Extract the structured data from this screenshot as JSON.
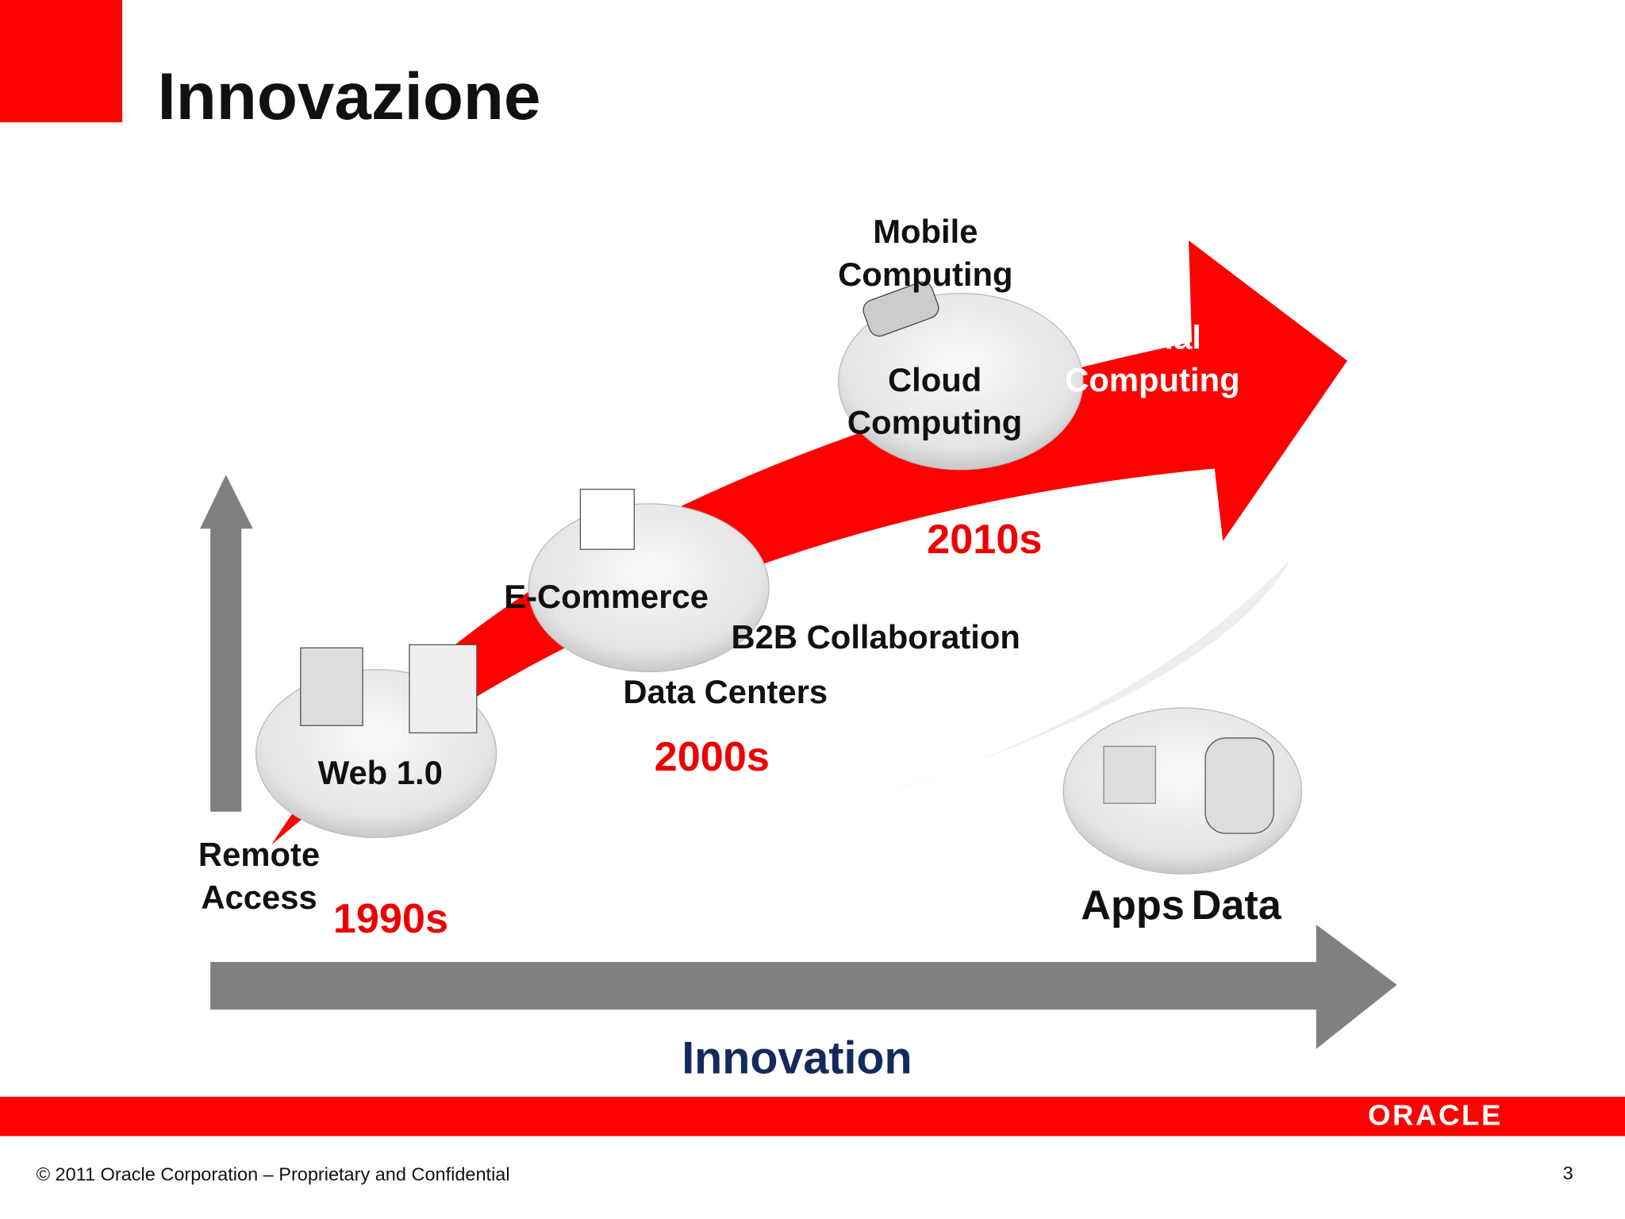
{
  "header": {
    "title": "Innovazione"
  },
  "labels": [
    {
      "name": "mobile-computing",
      "lines": [
        "Mobile",
        "Computing"
      ],
      "kind": "dark"
    },
    {
      "name": "social-computing",
      "lines": [
        "Social",
        "Computing"
      ],
      "kind": "light"
    },
    {
      "name": "cloud-computing",
      "lines": [
        "Cloud",
        "Computing"
      ],
      "kind": "dark"
    },
    {
      "name": "era-2010s",
      "lines": [
        "2010s"
      ],
      "kind": "era"
    },
    {
      "name": "e-commerce",
      "lines": [
        "E-Commerce"
      ],
      "kind": "dark"
    },
    {
      "name": "b2b-collaboration",
      "lines": [
        "B2B Collaboration"
      ],
      "kind": "dark"
    },
    {
      "name": "data-centers",
      "lines": [
        "Data Centers"
      ],
      "kind": "dark"
    },
    {
      "name": "era-2000s",
      "lines": [
        "2000s"
      ],
      "kind": "era"
    },
    {
      "name": "web-1",
      "lines": [
        "Web 1.0"
      ],
      "kind": "dark"
    },
    {
      "name": "remote-access",
      "lines": [
        "Remote",
        "Access"
      ],
      "kind": "dark"
    },
    {
      "name": "era-1990s",
      "lines": [
        "1990s"
      ],
      "kind": "era"
    },
    {
      "name": "apps",
      "lines": [
        "Apps"
      ],
      "kind": "big"
    },
    {
      "name": "data",
      "lines": [
        "Data"
      ],
      "kind": "big"
    }
  ],
  "axis": {
    "label": "Innovation"
  },
  "footer": {
    "logo": "ORACLE",
    "copyright": "© 2011 Oracle Corporation – Proprietary and Confidential",
    "page": "3"
  }
}
